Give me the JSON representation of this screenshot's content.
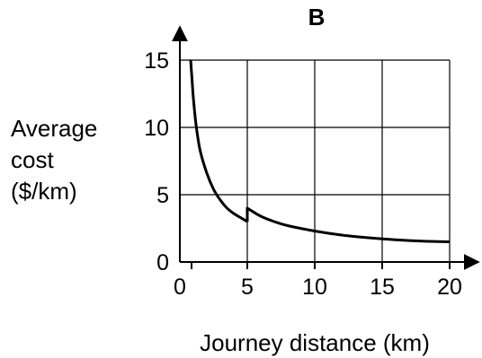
{
  "chart_data": {
    "type": "line",
    "title": "B",
    "ylabel_lines": [
      "Average",
      "cost",
      "($/km)"
    ],
    "xlabel": "Journey distance (km)",
    "xlim": [
      0,
      20
    ],
    "ylim": [
      0,
      15
    ],
    "x_ticks": [
      0,
      5,
      10,
      15,
      20
    ],
    "y_ticks": [
      0,
      5,
      10,
      15
    ],
    "x_tick_labels": [
      "0",
      "5",
      "10",
      "15",
      "20"
    ],
    "y_tick_labels": [
      "0",
      "5",
      "10",
      "15"
    ],
    "grid": true,
    "series": [
      {
        "segment": 1,
        "points": [
          [
            0.8,
            15
          ],
          [
            0.9,
            13.6
          ],
          [
            1.0,
            12.2
          ],
          [
            1.2,
            10.2
          ],
          [
            1.5,
            8.3
          ],
          [
            2.0,
            6.6
          ],
          [
            2.5,
            5.4
          ],
          [
            3.0,
            4.6
          ],
          [
            3.5,
            4.0
          ],
          [
            4.0,
            3.6
          ],
          [
            4.5,
            3.3
          ],
          [
            5.0,
            3.0
          ]
        ]
      },
      {
        "segment": 2,
        "points": [
          [
            5.0,
            3.0
          ],
          [
            5.0,
            4.0
          ],
          [
            6.0,
            3.4
          ],
          [
            7.0,
            3.0
          ],
          [
            8.0,
            2.7
          ],
          [
            10.0,
            2.3
          ],
          [
            12.0,
            2.0
          ],
          [
            14.0,
            1.8
          ],
          [
            16.0,
            1.65
          ],
          [
            18.0,
            1.55
          ],
          [
            20.0,
            1.5
          ]
        ]
      }
    ]
  }
}
